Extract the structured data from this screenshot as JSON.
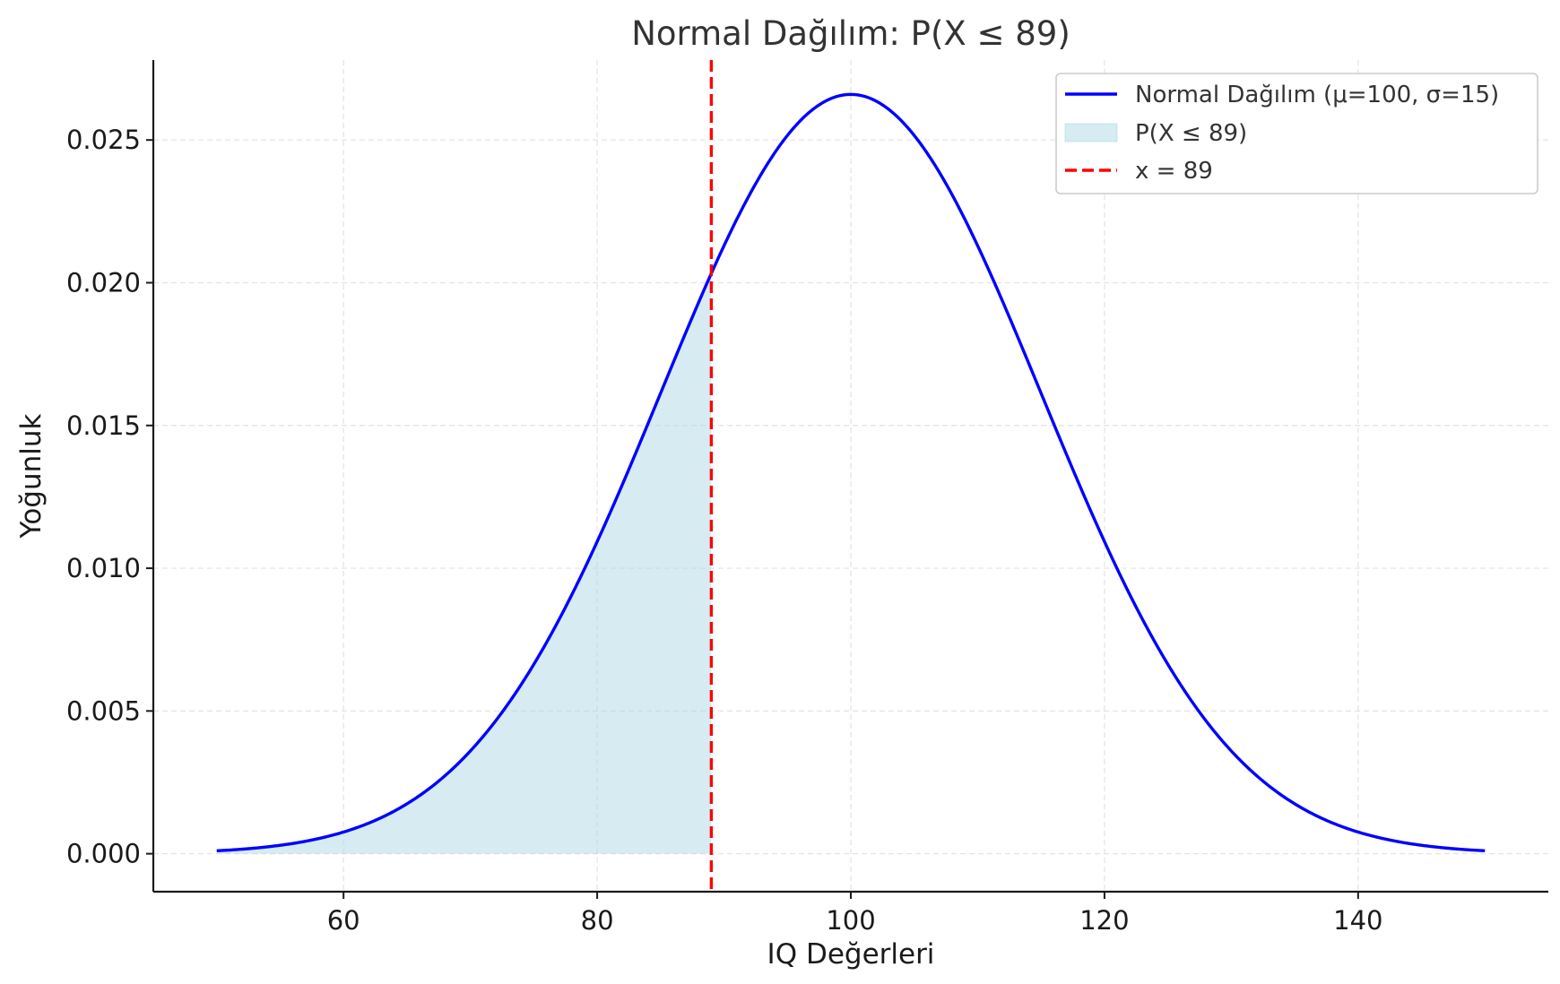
{
  "chart_data": {
    "type": "line",
    "title": "Normal Dağılım: P(X ≤ 89)",
    "xlabel": "IQ Değerleri",
    "ylabel": "Yoğunluk",
    "xlim": [
      45,
      155
    ],
    "ylim": [
      -0.00133,
      0.0278
    ],
    "x_ticks": [
      60,
      80,
      100,
      120,
      140
    ],
    "x_tick_labels": [
      "60",
      "80",
      "100",
      "120",
      "140"
    ],
    "y_ticks": [
      0,
      0.005,
      0.01,
      0.015,
      0.02,
      0.025
    ],
    "y_tick_labels": [
      "0.000",
      "0.005",
      "0.010",
      "0.015",
      "0.020",
      "0.025"
    ],
    "grid": true,
    "legend_position": "top-right",
    "distribution": {
      "mean": 100,
      "sd": 15,
      "x_min": 50,
      "x_max": 150
    },
    "series": [
      {
        "name": "Normal Dağılım (μ=100, σ=15)",
        "kind": "line",
        "color": "#0000ff",
        "style": "solid"
      },
      {
        "name": "P(X ≤ 89)",
        "kind": "area",
        "color": "#add8e6",
        "alpha": 0.5,
        "x_from": 50,
        "x_to": 89
      },
      {
        "name": "x = 89",
        "kind": "vline",
        "x": 89,
        "color": "#ff0000",
        "style": "dashed"
      }
    ]
  }
}
